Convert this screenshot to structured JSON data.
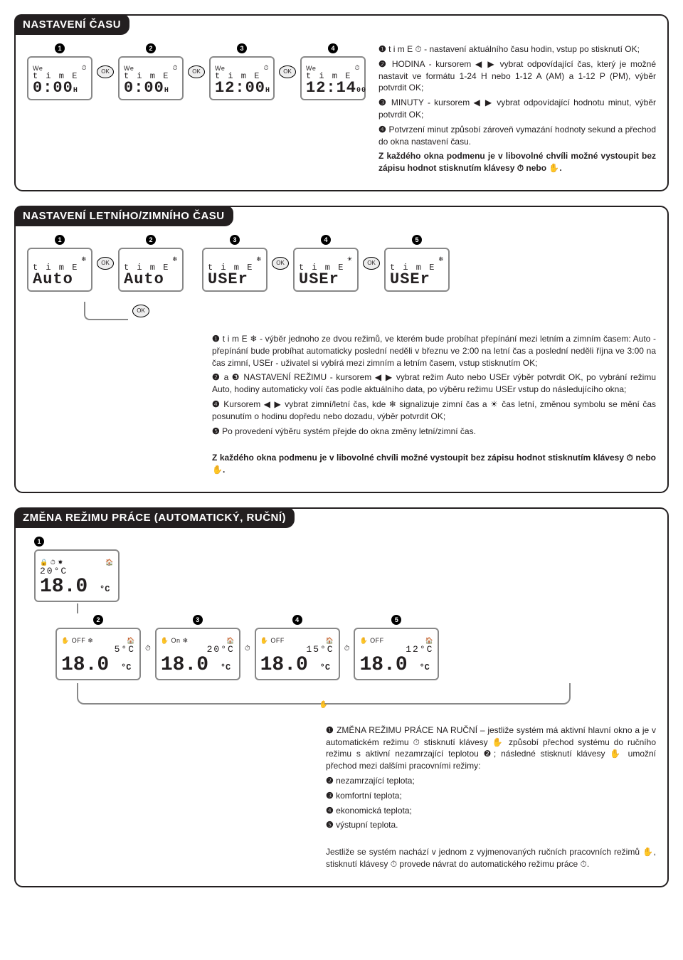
{
  "colors": {
    "text": "#231f20",
    "header_bg": "#231f20",
    "header_fg": "#ffffff",
    "lcd_border": "#888888",
    "bg": "#ffffff"
  },
  "typography": {
    "body_size": 12,
    "header_size": 15,
    "lcd_main_size": 22
  },
  "sec1": {
    "title": "NASTAVENÍ ČASU",
    "steps": [
      {
        "n": "1",
        "toplabel": "We",
        "label": "t i m E",
        "main": "0:00",
        "suffix": "H",
        "ok": true
      },
      {
        "n": "2",
        "toplabel": "We",
        "label": "t i m E",
        "main": "0:00",
        "suffix": "H",
        "ok": true
      },
      {
        "n": "3",
        "toplabel": "We",
        "label": "t i m E",
        "main": "12:00",
        "suffix": "H",
        "ok": true
      },
      {
        "n": "4",
        "toplabel": "We",
        "label": "t i m E",
        "main": "12:14",
        "suffix": "00"
      }
    ],
    "bullets": [
      {
        "n": "❶",
        "t": "t i m E ⏱ - nastavení aktuálního času hodin, vstup po stisknutí OK;"
      },
      {
        "n": "❷",
        "t": "HODINA - kursorem ◀ ▶ vybrat odpovídající čas, který je možné nastavit ve formátu 1-24 H nebo 1-12 A (AM) a 1-12 P (PM), výběr potvrdit OK;"
      },
      {
        "n": "❸",
        "t": "MINUTY - kursorem ◀ ▶ vybrat odpovídající hodnotu minut, výběr potvrdit OK;"
      },
      {
        "n": "❹",
        "t": "Potvrzení minut způsobí zároveň vymazání hodnoty sekund a přechod do okna nastavení času."
      }
    ],
    "note": "Z každého okna podmenu  je v libovolné chvíli možné vystoupit bez zápisu hodnot stisknutím klávesy ⏱ nebo ✋."
  },
  "sec2": {
    "title": "NASTAVENÍ LETNÍHO/ZIMNÍHO ČASU",
    "steps": [
      {
        "n": "1",
        "label": "t i m E",
        "main": "Auto",
        "icon": "❄",
        "ok": true
      },
      {
        "n": "2",
        "label": "t i m E",
        "main": "Auto",
        "icon": "❄"
      },
      {
        "n": "3",
        "label": "t i m E",
        "main": "USEr",
        "icon": "❄",
        "ok": true
      },
      {
        "n": "4",
        "label": "t i m E",
        "main": "USEr",
        "icon": "☀",
        "ok": true
      },
      {
        "n": "5",
        "label": "t i m E",
        "main": "USEr",
        "icon": "❄"
      }
    ],
    "ok_back": "OK",
    "bullets": [
      {
        "n": "❶",
        "t": "t i m E ❄ - výběr jednoho ze dvou režimů, ve kterém bude probíhat přepínání mezi letním a zimním časem: Auto - přepínání bude probíhat automaticky poslední neděli v březnu ve 2:00 na letní čas a poslední neděli října ve 3:00 na čas zimní, USEr - uživatel si vybírá mezi zimním a letním časem, vstup stisknutím OK;"
      },
      {
        "n": "❷",
        "t": "a ❸ NASTAVENÍ REŽIMU - kursorem ◀ ▶ vybrat  režim Auto nebo USEr výběr potvrdit OK, po vybrání režimu Auto, hodiny automaticky volí čas podle aktuálního data, po výběru režimu USEr vstup do následujícího okna;"
      },
      {
        "n": "❹",
        "t": "Kursorem ◀ ▶ vybrat zimní/letní čas, kde ❄ signalizuje zimní čas a ☀ čas letní, změnou symbolu se mění čas posunutím o hodinu dopředu nebo dozadu, výběr potvrdit OK;"
      },
      {
        "n": "❺",
        "t": "Po provedení výběru systém přejde do okna změny letní/zimní čas."
      }
    ],
    "note": "Z každého okna podmenu  je v libovolné chvíli možné vystoupit bez zápisu hodnot stisknutím klávesy ⏱ nebo ✋."
  },
  "sec3": {
    "title": "ZMĚNA REŽIMU PRÁCE (AUTOMATICKÝ, RUČNÍ)",
    "first": {
      "n": "1",
      "top_icons": "🔒 ⏱        ☀",
      "set": "20°C",
      "main": "18.0",
      "unit": "°C",
      "house": "🏠"
    },
    "row": [
      {
        "n": "2",
        "status": "OFF",
        "icon": "❄",
        "set": "5°C",
        "main": "18.0",
        "unit": "°C",
        "house": "🏠"
      },
      {
        "n": "3",
        "status": "On",
        "icon": "❄",
        "set": "20°C",
        "main": "18.0",
        "unit": "°C",
        "house": "🏠"
      },
      {
        "n": "4",
        "status": "OFF",
        "icon": "",
        "set": "15°C",
        "main": "18.0",
        "unit": "°C",
        "house": "🏠"
      },
      {
        "n": "5",
        "status": "OFF",
        "icon": "",
        "set": "12°C",
        "main": "18.0",
        "unit": "°C",
        "house": "🏠"
      }
    ],
    "bullets": [
      {
        "n": "❶",
        "t": "ZMĚNA REŽIMU PRÁCE NA RUČNÍ – jestliže systém má aktivní hlavní okno a je v automatickém režimu ⏱ stisknutí klávesy ✋ způsobí přechod systému do ručního režimu s aktivní nezamrzající teplotou ❷; následné stisknutí klávesy ✋ umožní  přechod mezi dalšími pracovními režimy:"
      },
      {
        "n": "❷",
        "t": "nezamrzající teplota;"
      },
      {
        "n": "❸",
        "t": "komfortní teplota;"
      },
      {
        "n": "❹",
        "t": "ekonomická teplota;"
      },
      {
        "n": "❺",
        "t": "výstupní teplota."
      }
    ],
    "note": "Jestliže se systém nachází v jednom z vyjmenovaných ručních pracovních režimů ✋, stisknutí klávesy ⏱ provede návrat  do automatického režimu práce ⏱."
  }
}
